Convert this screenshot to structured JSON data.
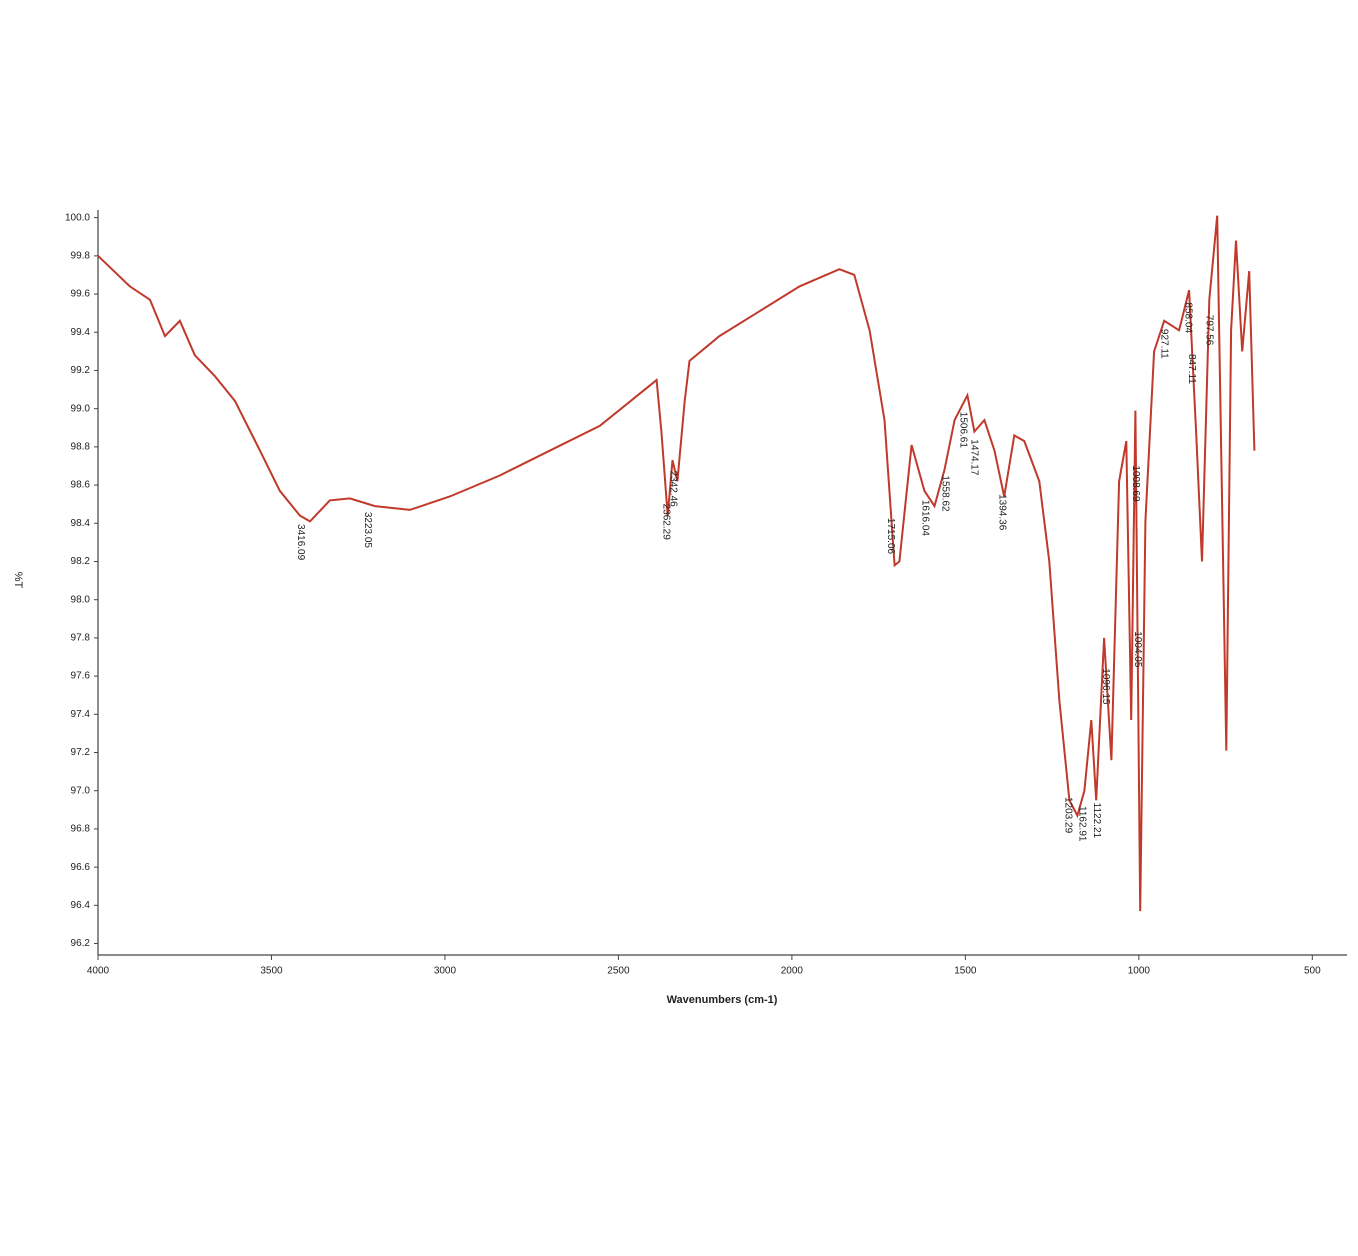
{
  "chart_data": {
    "type": "line",
    "xlabel": "Wavenumbers (cm-1)",
    "ylabel": "%T",
    "xlim": [
      4000,
      400
    ],
    "ylim": [
      96.14,
      100.04
    ],
    "xticks": [
      4000,
      3500,
      3000,
      2500,
      2000,
      1500,
      1000,
      500
    ],
    "yticks": [
      {
        "value": 100,
        "label": "100.0"
      },
      99.8,
      99.6,
      99.4,
      99.2,
      {
        "value": 99,
        "label": "99.0"
      },
      98.8,
      98.6,
      98.4,
      98.2,
      {
        "value": 98,
        "label": "98.0"
      },
      97.8,
      97.6,
      97.4,
      97.2,
      {
        "value": 97,
        "label": "97.0"
      },
      96.8,
      96.6,
      96.4,
      96.2
    ],
    "color": "#c0392b",
    "x": [
      4000,
      3908,
      3850,
      3807,
      3764,
      3721,
      3663,
      3605,
      3533,
      3476,
      3418,
      3389,
      3332,
      3274,
      3202,
      3101,
      2986,
      2842,
      2698,
      2554,
      2410,
      2390,
      2376,
      2358,
      2344,
      2330,
      2309,
      2295,
      2209,
      2093,
      1978,
      1863,
      1820,
      1776,
      1733,
      1704,
      1690,
      1655,
      1618,
      1589,
      1560,
      1531,
      1494,
      1474,
      1445,
      1416,
      1388,
      1359,
      1330,
      1287,
      1258,
      1229,
      1200,
      1177,
      1157,
      1137,
      1123,
      1100,
      1079,
      1057,
      1036,
      1022,
      1010,
      996,
      981,
      956,
      927,
      884,
      855,
      835,
      818,
      797,
      774,
      748,
      734,
      720,
      702,
      682,
      667
    ],
    "values": [
      99.8,
      99.64,
      99.57,
      99.38,
      99.46,
      99.28,
      99.17,
      99.04,
      98.78,
      98.57,
      98.44,
      98.41,
      98.52,
      98.53,
      98.49,
      98.47,
      98.54,
      98.65,
      98.78,
      98.91,
      99.12,
      99.15,
      98.88,
      98.44,
      98.73,
      98.62,
      99.04,
      99.25,
      99.38,
      99.51,
      99.64,
      99.73,
      99.7,
      99.41,
      98.94,
      98.18,
      98.2,
      98.81,
      98.57,
      98.49,
      98.68,
      98.94,
      99.07,
      98.88,
      98.94,
      98.78,
      98.54,
      98.86,
      98.83,
      98.62,
      98.2,
      97.47,
      96.95,
      96.87,
      97.0,
      97.37,
      96.95,
      97.8,
      97.16,
      98.62,
      98.83,
      97.37,
      98.99,
      96.37,
      98.41,
      99.3,
      99.46,
      99.41,
      99.62,
      98.88,
      98.2,
      99.57,
      100.01,
      97.21,
      99.41,
      99.88,
      99.3,
      99.72,
      98.78
    ],
    "peaks": [
      3416.09,
      3223.05,
      2362.29,
      2342.46,
      1715.06,
      1616.04,
      1558.62,
      1506.61,
      1474.17,
      1394.36,
      1203.29,
      1162.91,
      1122.21,
      1096.15,
      1008.69,
      1004.05,
      927.11,
      858.04,
      847.11,
      797.56
    ]
  }
}
